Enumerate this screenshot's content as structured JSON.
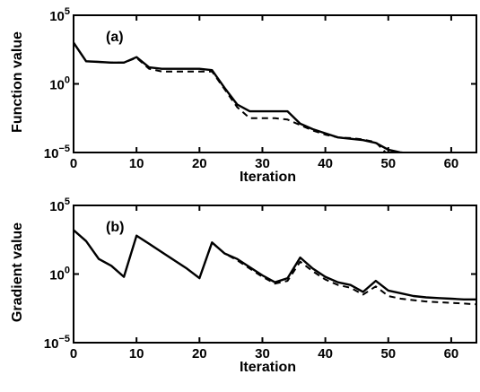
{
  "chart_data": [
    {
      "type": "line",
      "panel_label": "(a)",
      "xlabel": "Iteration",
      "ylabel": "Function value",
      "xlim": [
        0,
        64
      ],
      "ylim_log10": [
        -5,
        5
      ],
      "y_scale": "log",
      "xticks": [
        0,
        10,
        20,
        30,
        40,
        50,
        60
      ],
      "yticks": [
        {
          "base": "10",
          "exp": "5",
          "v": 5
        },
        {
          "base": "10",
          "exp": "0",
          "v": 0
        },
        {
          "base": "10",
          "exp": "−5",
          "v": -5
        }
      ],
      "series": [
        {
          "style": "solid",
          "x": [
            0,
            2,
            4,
            6,
            8,
            10,
            12,
            14,
            16,
            18,
            20,
            22,
            24,
            26,
            28,
            30,
            32,
            34,
            36,
            38,
            40,
            42,
            44,
            46,
            48,
            50,
            52,
            54,
            56,
            58,
            60,
            62,
            64
          ],
          "log10y": [
            3.0,
            1.65,
            1.6,
            1.55,
            1.55,
            1.95,
            1.2,
            1.1,
            1.1,
            1.1,
            1.1,
            1.0,
            -0.3,
            -1.5,
            -2.0,
            -2.0,
            -2.0,
            -2.0,
            -2.9,
            -3.3,
            -3.6,
            -3.9,
            -4.0,
            -4.1,
            -4.3,
            -4.8,
            -5.0,
            -5.1,
            -5.2,
            -5.25,
            -5.3,
            -5.35,
            -5.4
          ]
        },
        {
          "style": "dashed",
          "x": [
            0,
            2,
            4,
            6,
            8,
            10,
            12,
            14,
            16,
            18,
            20,
            22,
            24,
            26,
            28,
            30,
            32,
            34,
            36,
            38,
            40,
            42,
            44,
            46,
            48,
            50,
            52,
            54,
            56,
            58,
            60,
            62,
            64
          ],
          "log10y": [
            3.0,
            1.65,
            1.6,
            1.55,
            1.55,
            1.9,
            1.1,
            0.9,
            0.9,
            0.9,
            0.9,
            0.9,
            -0.4,
            -1.7,
            -2.5,
            -2.5,
            -2.5,
            -2.6,
            -3.0,
            -3.4,
            -3.7,
            -3.9,
            -3.95,
            -4.05,
            -4.25,
            -5.2,
            -5.3,
            -5.35,
            -5.4,
            -5.45,
            -5.45,
            -5.5,
            -5.5
          ]
        }
      ]
    },
    {
      "type": "line",
      "panel_label": "(b)",
      "xlabel": "Iteration",
      "ylabel": "Gradient value",
      "xlim": [
        0,
        64
      ],
      "ylim_log10": [
        -5,
        5
      ],
      "y_scale": "log",
      "xticks": [
        0,
        10,
        20,
        30,
        40,
        50,
        60
      ],
      "yticks": [
        {
          "base": "10",
          "exp": "5",
          "v": 5
        },
        {
          "base": "10",
          "exp": "0",
          "v": 0
        },
        {
          "base": "10",
          "exp": "−5",
          "v": -5
        }
      ],
      "series": [
        {
          "style": "solid",
          "x": [
            0,
            2,
            4,
            6,
            8,
            10,
            12,
            14,
            16,
            18,
            20,
            22,
            24,
            26,
            28,
            30,
            32,
            34,
            36,
            38,
            40,
            42,
            44,
            46,
            48,
            50,
            52,
            54,
            56,
            58,
            60,
            62,
            64
          ],
          "log10y": [
            3.2,
            2.4,
            1.1,
            0.6,
            -0.2,
            2.8,
            2.2,
            1.6,
            1.0,
            0.4,
            -0.3,
            2.3,
            1.5,
            1.1,
            0.5,
            -0.1,
            -0.6,
            -0.3,
            1.2,
            0.4,
            -0.2,
            -0.6,
            -0.8,
            -1.3,
            -0.5,
            -1.2,
            -1.4,
            -1.6,
            -1.7,
            -1.75,
            -1.8,
            -1.85,
            -1.85
          ]
        },
        {
          "style": "dashed",
          "x": [
            0,
            2,
            4,
            6,
            8,
            10,
            12,
            14,
            16,
            18,
            20,
            22,
            24,
            26,
            28,
            30,
            32,
            34,
            36,
            38,
            40,
            42,
            44,
            46,
            48,
            50,
            52,
            54,
            56,
            58,
            60,
            62,
            64
          ],
          "log10y": [
            3.2,
            2.4,
            1.1,
            0.6,
            -0.2,
            2.8,
            2.2,
            1.6,
            1.0,
            0.4,
            -0.3,
            2.3,
            1.5,
            1.0,
            0.4,
            -0.2,
            -0.7,
            -0.5,
            0.9,
            0.2,
            -0.4,
            -0.8,
            -1.0,
            -1.5,
            -0.9,
            -1.6,
            -1.8,
            -1.9,
            -2.0,
            -2.05,
            -2.1,
            -2.15,
            -2.2
          ]
        }
      ]
    }
  ]
}
